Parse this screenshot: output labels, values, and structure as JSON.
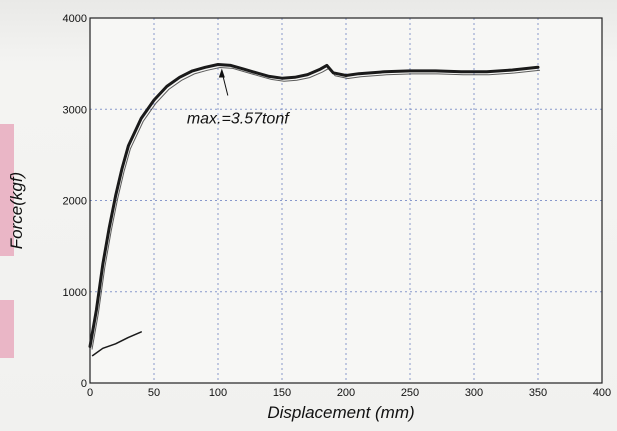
{
  "chart_data": {
    "type": "line",
    "xlabel": "Displacement (mm)",
    "ylabel": "Force(kgf)",
    "xlim": [
      0,
      400
    ],
    "ylim": [
      0,
      4000
    ],
    "x_ticks": [
      0,
      50,
      100,
      150,
      200,
      250,
      300,
      350,
      400
    ],
    "y_ticks": [
      0,
      1000,
      2000,
      3000,
      4000
    ],
    "grid": true,
    "annotations": [
      {
        "text": "max.=3.57tonf",
        "x": 103,
        "y": 3480
      }
    ],
    "series": [
      {
        "points": [
          [
            0,
            400
          ],
          [
            5,
            800
          ],
          [
            10,
            1300
          ],
          [
            15,
            1700
          ],
          [
            20,
            2050
          ],
          [
            25,
            2350
          ],
          [
            30,
            2600
          ],
          [
            40,
            2900
          ],
          [
            50,
            3100
          ],
          [
            60,
            3250
          ],
          [
            70,
            3350
          ],
          [
            80,
            3420
          ],
          [
            90,
            3460
          ],
          [
            100,
            3490
          ],
          [
            110,
            3480
          ],
          [
            120,
            3440
          ],
          [
            130,
            3400
          ],
          [
            140,
            3360
          ],
          [
            150,
            3340
          ],
          [
            160,
            3350
          ],
          [
            170,
            3380
          ],
          [
            180,
            3440
          ],
          [
            185,
            3480
          ],
          [
            190,
            3400
          ],
          [
            200,
            3370
          ],
          [
            210,
            3390
          ],
          [
            230,
            3410
          ],
          [
            250,
            3420
          ],
          [
            270,
            3420
          ],
          [
            290,
            3410
          ],
          [
            310,
            3410
          ],
          [
            330,
            3430
          ],
          [
            350,
            3460
          ]
        ]
      },
      {
        "points": [
          [
            2,
            300
          ],
          [
            10,
            380
          ],
          [
            20,
            430
          ],
          [
            30,
            500
          ],
          [
            40,
            560
          ]
        ]
      }
    ],
    "colors": {
      "line": "#1a1a1a",
      "grid": "#8899cc",
      "plot_bg": "#f7f7f5"
    }
  }
}
